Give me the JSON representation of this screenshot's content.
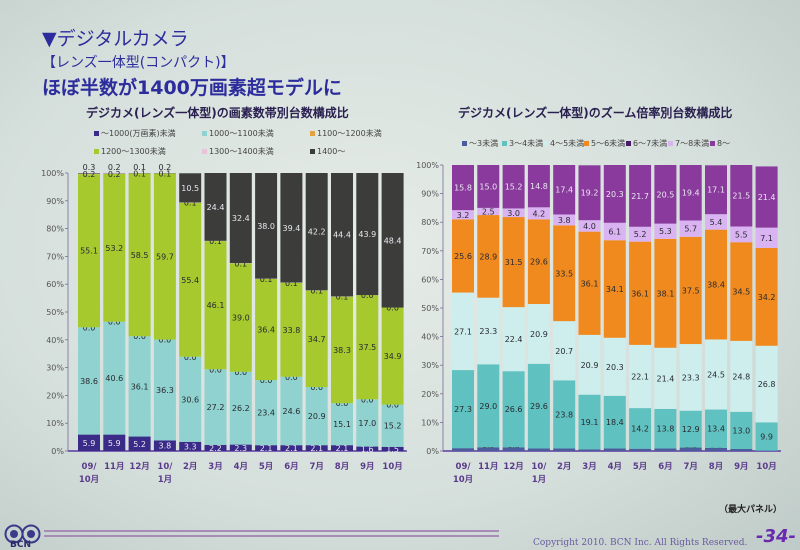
{
  "header": {
    "title": "▼デジタルカメラ",
    "subtitle": "【レンズ一体型(コンパクト)】",
    "headline": "ほぼ半数が1400万画素超モデルに"
  },
  "footer": {
    "note": "（最大パネル）",
    "copyright": "Copyright 2010. BCN Inc. All Rights Reserved.",
    "page": "-34-",
    "logo_text": "BCN"
  },
  "chart_data": [
    {
      "type": "bar",
      "stacked": true,
      "title": "デジカメ(レンズ一体型)の画素数帯別台数構成比",
      "categories": [
        "09/\n10月",
        "11月",
        "12月",
        "10/\n1月",
        "2月",
        "3月",
        "4月",
        "5月",
        "6月",
        "7月",
        "8月",
        "9月",
        "10月"
      ],
      "yticks": [
        "0%",
        "10%",
        "20%",
        "30%",
        "40%",
        "50%",
        "60%",
        "70%",
        "80%",
        "90%",
        "100%"
      ],
      "ylim": [
        0,
        100
      ],
      "legend_position": "top",
      "series": [
        {
          "name": "～1000(万画素)未満",
          "color": "#3b2b88",
          "values": [
            5.9,
            5.9,
            5.2,
            3.8,
            3.3,
            2.2,
            2.3,
            2.1,
            2.1,
            2.1,
            2.1,
            1.6,
            1.5
          ]
        },
        {
          "name": "1000～1100未満",
          "color": "#8fd2cf",
          "values": [
            38.6,
            40.6,
            36.1,
            36.3,
            30.6,
            27.2,
            26.2,
            23.4,
            24.6,
            20.9,
            15.1,
            17.0,
            15.2
          ]
        },
        {
          "name": "1100～1200未満",
          "color": "#e2a33e",
          "values": [
            0.0,
            0.0,
            0.0,
            0.0,
            0.0,
            0.0,
            0.0,
            0.0,
            0.0,
            0.0,
            0.0,
            0.0,
            0.0
          ]
        },
        {
          "name": "1200～1300未満",
          "color": "#a6c92e",
          "values": [
            55.1,
            53.2,
            58.5,
            59.7,
            55.4,
            46.1,
            39.0,
            36.4,
            33.8,
            34.7,
            38.3,
            37.5,
            34.9
          ]
        },
        {
          "name": "1300～1400未満",
          "color": "#e8c4d8",
          "values": [
            0.2,
            0.2,
            0.1,
            0.1,
            0.1,
            0.1,
            0.1,
            0.1,
            0.1,
            0.1,
            0.1,
            0.0,
            0.0
          ]
        },
        {
          "name": "1400～",
          "color": "#3c3d3a",
          "values": [
            0.3,
            0.2,
            0.1,
            0.2,
            10.5,
            24.4,
            32.4,
            38.0,
            39.4,
            42.2,
            44.4,
            43.9,
            48.4
          ]
        }
      ]
    },
    {
      "type": "bar",
      "stacked": true,
      "title": "デジカメ(レンズ一体型)のズーム倍率別台数構成比",
      "categories": [
        "09/\n10月",
        "11月",
        "12月",
        "10/\n1月",
        "2月",
        "3月",
        "4月",
        "5月",
        "6月",
        "7月",
        "8月",
        "9月",
        "10月"
      ],
      "yticks": [
        "0%",
        "10%",
        "20%",
        "30%",
        "40%",
        "50%",
        "60%",
        "70%",
        "80%",
        "90%",
        "100%"
      ],
      "ylim": [
        0,
        100
      ],
      "legend_position": "top",
      "series": [
        {
          "name": "～3未満",
          "color": "#4a5c9c",
          "values": [
            1.0,
            1.3,
            1.3,
            0.9,
            0.9,
            0.6,
            0.9,
            0.8,
            0.9,
            1.2,
            1.1,
            0.7,
            0.1
          ]
        },
        {
          "name": "3～4未満",
          "color": "#5fc1c0",
          "values": [
            27.3,
            29.0,
            26.6,
            29.6,
            23.8,
            19.1,
            18.4,
            14.2,
            13.8,
            12.9,
            13.4,
            13.0,
            9.9
          ]
        },
        {
          "name": "4～5未満",
          "color": "#cdeeed",
          "values": [
            27.1,
            23.3,
            22.4,
            20.9,
            20.7,
            20.9,
            20.3,
            22.1,
            21.4,
            23.3,
            24.5,
            24.8,
            26.8
          ]
        },
        {
          "name": "5～6未満",
          "color": "#f08a1e",
          "values": [
            25.6,
            28.9,
            31.5,
            29.6,
            33.5,
            36.1,
            34.1,
            36.1,
            38.1,
            37.5,
            38.4,
            34.5,
            34.2
          ]
        },
        {
          "name": "6～7未満",
          "color": "#4a1a6a",
          "values": [
            0,
            0,
            0,
            0,
            0,
            0,
            0,
            0,
            0,
            0,
            0,
            0,
            0
          ],
          "labels_hidden": true
        },
        {
          "name": "7～8未満",
          "color": "#dab4f2",
          "values": [
            3.2,
            2.5,
            3.0,
            4.2,
            3.8,
            4.0,
            6.1,
            5.2,
            5.3,
            5.7,
            5.4,
            5.5,
            7.1
          ]
        },
        {
          "name": "8～",
          "color": "#8a3a9c",
          "values": [
            15.8,
            15.0,
            15.2,
            14.8,
            17.4,
            19.2,
            20.3,
            21.7,
            20.5,
            19.4,
            17.1,
            21.5,
            21.4
          ]
        }
      ]
    }
  ]
}
